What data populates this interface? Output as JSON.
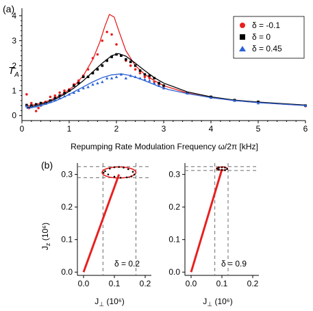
{
  "panel_a": {
    "panel_label": "(a)",
    "ylabel": "T",
    "ylabel_sub": "A",
    "xlabel": "Repumping Rate Modulation Frequency ω/2π [kHz]"
  },
  "panel_b": {
    "panel_label": "(b)",
    "ylabel": "J",
    "ylabel_sub": "z",
    "ylabel_unit": "(10⁶)",
    "xlabel": "J",
    "xlabel_sub": "⊥",
    "xlabel_unit": "(10⁶)",
    "left_annotation": "δ = 0.2",
    "right_annotation": "δ = 0.9"
  },
  "colors": {
    "red": "#e8201f",
    "black": "#000000",
    "blue": "#2a62d6",
    "dash": "#6b6b6b"
  },
  "chart_data": [
    {
      "type": "scatter",
      "xlim": [
        0,
        6
      ],
      "ylim": [
        -0.2,
        4.3
      ],
      "xticks": [
        "0",
        "1",
        "2",
        "3",
        "4",
        "5",
        "6"
      ],
      "yticks": [
        "0",
        "1",
        "2",
        "3",
        "4"
      ],
      "legend_position": "top-right",
      "series": [
        {
          "name": "δ = -0.1",
          "marker": "circle",
          "color": "red",
          "x": [
            0.1,
            0.15,
            0.2,
            0.3,
            0.35,
            0.4,
            0.5,
            0.6,
            0.7,
            0.8,
            0.9,
            1.0,
            1.1,
            1.2,
            1.3,
            1.4,
            1.5,
            1.6,
            1.7,
            1.8,
            1.9,
            2.0,
            2.1,
            2.2,
            2.3,
            2.4,
            2.5,
            2.6,
            2.7,
            2.8,
            2.9,
            3.0,
            3.5,
            4.0,
            4.5,
            5.0,
            6.0
          ],
          "y": [
            0.85,
            0.3,
            0.5,
            0.18,
            0.3,
            0.4,
            0.55,
            0.75,
            0.8,
            0.92,
            1.0,
            1.05,
            1.25,
            1.4,
            1.6,
            1.85,
            2.3,
            2.45,
            3.0,
            3.35,
            3.25,
            2.85,
            2.4,
            2.2,
            2.0,
            1.85,
            1.7,
            1.55,
            1.5,
            1.35,
            1.25,
            1.1,
            0.9,
            0.75,
            0.6,
            0.55,
            0.38
          ],
          "fit": [
            [
              0.1,
              0.38
            ],
            [
              0.3,
              0.45
            ],
            [
              0.5,
              0.55
            ],
            [
              0.7,
              0.7
            ],
            [
              0.9,
              0.9
            ],
            [
              1.1,
              1.18
            ],
            [
              1.3,
              1.6
            ],
            [
              1.5,
              2.25
            ],
            [
              1.65,
              2.95
            ],
            [
              1.75,
              3.55
            ],
            [
              1.85,
              4.05
            ],
            [
              1.95,
              3.95
            ],
            [
              2.05,
              3.4
            ],
            [
              2.2,
              2.6
            ],
            [
              2.4,
              2.0
            ],
            [
              2.6,
              1.65
            ],
            [
              2.8,
              1.4
            ],
            [
              3.0,
              1.2
            ],
            [
              3.5,
              0.9
            ],
            [
              4.0,
              0.72
            ],
            [
              4.5,
              0.6
            ],
            [
              5.0,
              0.52
            ],
            [
              6.0,
              0.4
            ]
          ]
        },
        {
          "name": "δ = 0",
          "marker": "square",
          "color": "black",
          "x": [
            0.1,
            0.2,
            0.3,
            0.4,
            0.5,
            0.6,
            0.7,
            0.8,
            0.9,
            1.0,
            1.1,
            1.2,
            1.3,
            1.4,
            1.5,
            1.6,
            1.7,
            1.8,
            1.9,
            2.0,
            2.1,
            2.2,
            2.3,
            2.4,
            2.5,
            2.6,
            2.7,
            2.8,
            2.9,
            3.0,
            3.5,
            4.0,
            4.5,
            5.0,
            6.0
          ],
          "y": [
            0.42,
            0.4,
            0.45,
            0.5,
            0.5,
            0.6,
            0.7,
            0.8,
            0.9,
            1.0,
            1.2,
            1.3,
            1.55,
            1.55,
            1.7,
            1.85,
            2.0,
            2.2,
            2.35,
            2.45,
            2.4,
            2.25,
            2.15,
            2.0,
            1.8,
            1.65,
            1.6,
            1.5,
            1.3,
            1.2,
            0.9,
            0.75,
            0.62,
            0.55,
            0.4
          ],
          "fit": [
            [
              0.1,
              0.32
            ],
            [
              0.3,
              0.4
            ],
            [
              0.5,
              0.5
            ],
            [
              0.7,
              0.65
            ],
            [
              0.9,
              0.85
            ],
            [
              1.1,
              1.1
            ],
            [
              1.3,
              1.4
            ],
            [
              1.5,
              1.75
            ],
            [
              1.7,
              2.1
            ],
            [
              1.9,
              2.4
            ],
            [
              2.05,
              2.48
            ],
            [
              2.2,
              2.38
            ],
            [
              2.4,
              2.1
            ],
            [
              2.6,
              1.8
            ],
            [
              2.8,
              1.52
            ],
            [
              3.0,
              1.3
            ],
            [
              3.5,
              0.95
            ],
            [
              4.0,
              0.75
            ],
            [
              4.5,
              0.62
            ],
            [
              5.0,
              0.54
            ],
            [
              6.0,
              0.42
            ]
          ]
        },
        {
          "name": "δ = 0.45",
          "marker": "triangle",
          "color": "blue",
          "x": [
            0.1,
            0.2,
            0.3,
            0.4,
            0.5,
            0.6,
            0.7,
            0.8,
            0.9,
            1.0,
            1.1,
            1.2,
            1.3,
            1.4,
            1.5,
            1.6,
            1.7,
            1.8,
            1.9,
            2.0,
            2.1,
            2.2,
            2.3,
            2.4,
            2.5,
            2.6,
            2.7,
            2.8,
            2.9,
            3.0,
            3.5,
            4.0,
            4.5,
            5.0,
            6.0
          ],
          "y": [
            0.38,
            0.35,
            0.38,
            0.42,
            0.48,
            0.55,
            0.62,
            0.7,
            0.78,
            0.85,
            0.92,
            1.0,
            1.1,
            1.15,
            1.25,
            1.3,
            1.35,
            1.5,
            1.5,
            1.55,
            1.65,
            1.5,
            1.6,
            1.55,
            1.5,
            1.45,
            1.4,
            1.3,
            1.2,
            1.1,
            0.9,
            0.72,
            0.6,
            0.5,
            0.4
          ],
          "fit": [
            [
              0.1,
              0.28
            ],
            [
              0.3,
              0.35
            ],
            [
              0.5,
              0.45
            ],
            [
              0.7,
              0.58
            ],
            [
              0.9,
              0.75
            ],
            [
              1.1,
              0.95
            ],
            [
              1.3,
              1.15
            ],
            [
              1.5,
              1.35
            ],
            [
              1.7,
              1.52
            ],
            [
              1.9,
              1.63
            ],
            [
              2.1,
              1.67
            ],
            [
              2.3,
              1.6
            ],
            [
              2.5,
              1.47
            ],
            [
              2.7,
              1.32
            ],
            [
              2.9,
              1.17
            ],
            [
              3.1,
              1.04
            ],
            [
              3.5,
              0.88
            ],
            [
              4.0,
              0.72
            ],
            [
              4.5,
              0.6
            ],
            [
              5.0,
              0.52
            ],
            [
              6.0,
              0.4
            ]
          ]
        }
      ]
    },
    {
      "type": "line",
      "annotation": "δ = 0.2",
      "xlim": [
        -0.02,
        0.22
      ],
      "ylim": [
        -0.01,
        0.335
      ],
      "xticks": [
        "0.0",
        "0.1",
        "0.2"
      ],
      "yticks": [
        "0.0",
        "0.1",
        "0.2",
        "0.3"
      ],
      "vector": [
        [
          0,
          0
        ],
        [
          0.115,
          0.3
        ]
      ],
      "ellipse": {
        "center": [
          0.115,
          0.306
        ],
        "radius": [
          0.055,
          0.017
        ]
      },
      "ellipse_points": [
        [
          0.07,
          0.31
        ],
        [
          0.085,
          0.318
        ],
        [
          0.1,
          0.322
        ],
        [
          0.115,
          0.323
        ],
        [
          0.13,
          0.321
        ],
        [
          0.145,
          0.316
        ],
        [
          0.16,
          0.308
        ],
        [
          0.165,
          0.3
        ],
        [
          0.155,
          0.294
        ],
        [
          0.14,
          0.291
        ],
        [
          0.12,
          0.29
        ],
        [
          0.1,
          0.293
        ],
        [
          0.08,
          0.3
        ],
        [
          0.065,
          0.305
        ]
      ],
      "dashed_x": [
        0.063,
        0.17
      ],
      "dashed_y": [
        0.29,
        0.324
      ]
    },
    {
      "type": "line",
      "annotation": "δ = 0.9",
      "xlim": [
        -0.02,
        0.22
      ],
      "ylim": [
        -0.01,
        0.335
      ],
      "xticks": [
        "0.0",
        "0.1",
        "0.2"
      ],
      "yticks": [
        "0.0",
        "0.1",
        "0.2",
        "0.3"
      ],
      "vector": [
        [
          0,
          0
        ],
        [
          0.1,
          0.315
        ]
      ],
      "ellipse": {
        "center": [
          0.1,
          0.318
        ],
        "radius": [
          0.018,
          0.005
        ]
      },
      "ellipse_points": [
        [
          0.085,
          0.318
        ],
        [
          0.09,
          0.321
        ],
        [
          0.1,
          0.322
        ],
        [
          0.11,
          0.321
        ],
        [
          0.117,
          0.317
        ],
        [
          0.11,
          0.313
        ],
        [
          0.1,
          0.314
        ],
        [
          0.09,
          0.315
        ]
      ],
      "dashed_x": [
        0.077,
        0.12
      ],
      "dashed_y": [
        0.312,
        0.324
      ]
    }
  ]
}
